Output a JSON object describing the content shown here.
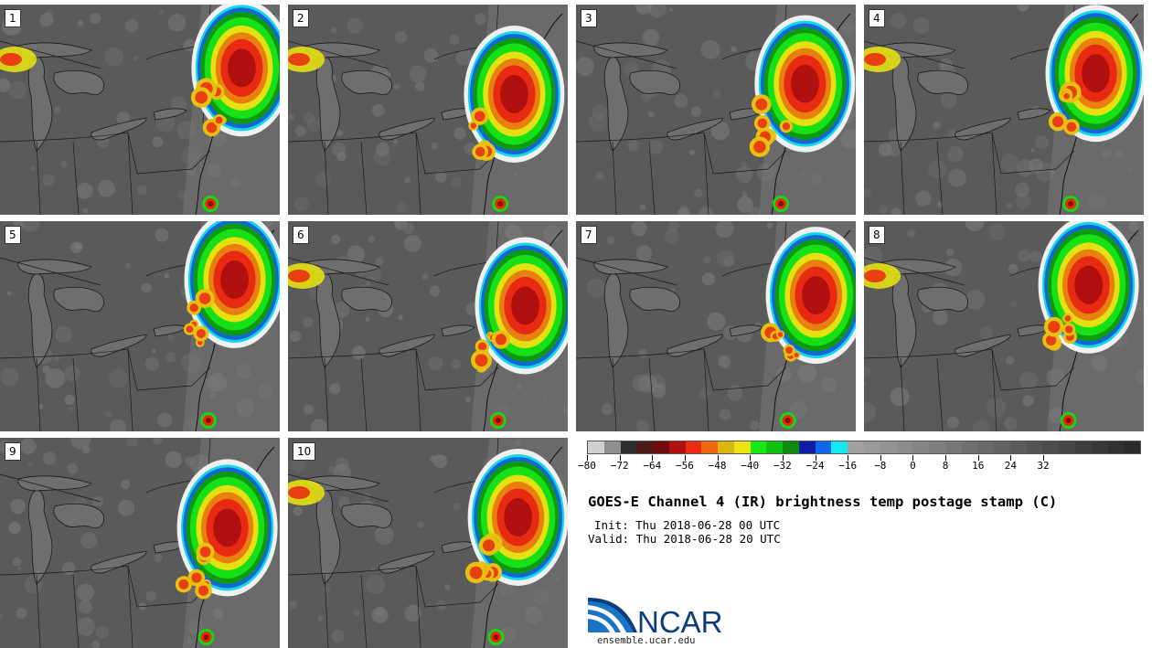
{
  "panels": [
    {
      "label": "1"
    },
    {
      "label": "2"
    },
    {
      "label": "3"
    },
    {
      "label": "4"
    },
    {
      "label": "5"
    },
    {
      "label": "6"
    },
    {
      "label": "7"
    },
    {
      "label": "8"
    },
    {
      "label": "9"
    },
    {
      "label": "10"
    }
  ],
  "colorbar": {
    "colors": [
      "#cfcfcf",
      "#8e8e8e",
      "#2e2e2e",
      "#4b1a1a",
      "#6e0e0e",
      "#b31111",
      "#ee2a12",
      "#ee6a10",
      "#d8b80e",
      "#ece410",
      "#14ea14",
      "#10c010",
      "#0c8c0c",
      "#0c1ea8",
      "#0f66e6",
      "#11eaf0",
      "#a0a0a0",
      "#9a9a9a",
      "#939393",
      "#8c8c8c",
      "#858585",
      "#7e7e7e",
      "#777777",
      "#707070",
      "#696969",
      "#626262",
      "#5b5b5b",
      "#545454",
      "#4d4d4d",
      "#464646",
      "#3f3f3f",
      "#383838",
      "#313131",
      "#2a2a2a"
    ],
    "tick_labels": [
      "−80",
      "−72",
      "−64",
      "−56",
      "−48",
      "−40",
      "−32",
      "−24",
      "−16",
      "−8",
      "0",
      "8",
      "16",
      "24",
      "32"
    ]
  },
  "title": "GOES-E Channel 4 (IR) brightness temp postage stamp (C)",
  "init_line": "Init: Thu 2018-06-28 00 UTC",
  "valid_line": "Valid: Thu 2018-06-28 20 UTC",
  "logo_text": "NCAR",
  "website": "ensemble.ucar.edu"
}
